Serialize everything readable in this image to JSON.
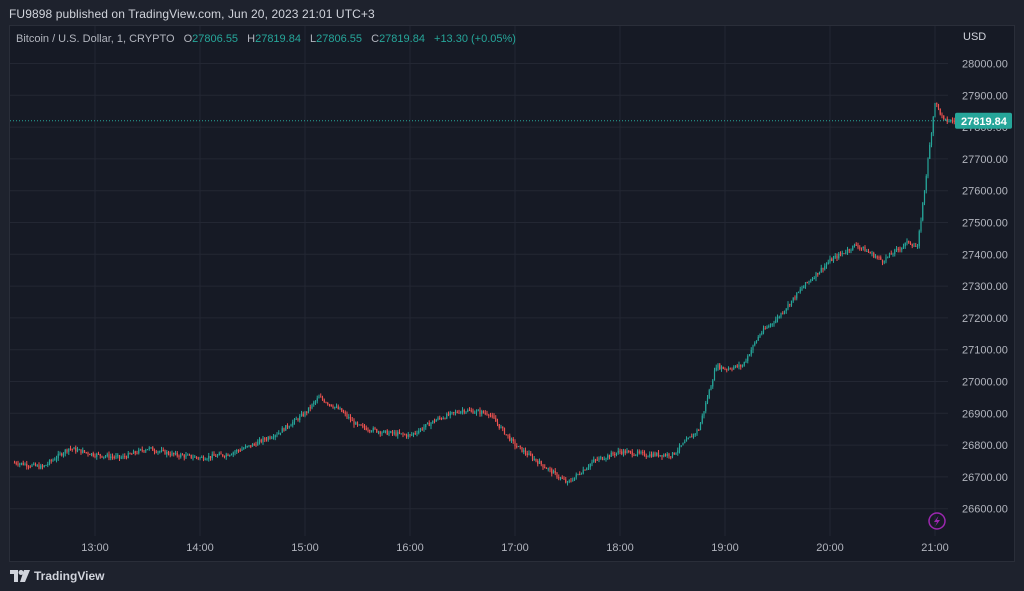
{
  "header": {
    "publish_line": "FU9898 published on TradingView.com, Jun 20, 2023 21:01 UTC+3"
  },
  "legend": {
    "symbol": "Bitcoin / U.S. Dollar, 1, CRYPTO",
    "o_key": "O",
    "o_val": "27806.55",
    "h_key": "H",
    "h_val": "27819.84",
    "l_key": "L",
    "l_val": "27806.55",
    "c_key": "C",
    "c_val": "27819.84",
    "change": "+13.30 (+0.05%)"
  },
  "price_axis": {
    "currency": "USD",
    "last_price": "27819.84",
    "ticks": [
      "28000.00",
      "27900.00",
      "27800.00",
      "27700.00",
      "27600.00",
      "27500.00",
      "27400.00",
      "27300.00",
      "27200.00",
      "27100.00",
      "27000.00",
      "26900.00",
      "26800.00",
      "26700.00",
      "26600.00"
    ]
  },
  "footer": {
    "brand": "TradingView"
  },
  "colors": {
    "up": "#26a69a",
    "down": "#ef5350",
    "background": "#161a25",
    "grid": "#232733",
    "accent_icon": "#9c27b0"
  },
  "icons": {
    "logo": "tradingview-logo-icon",
    "lightning": "lightning-icon"
  },
  "chart_data": {
    "type": "line",
    "title": "Bitcoin / U.S. Dollar, 1, CRYPTO",
    "xlabel": "",
    "ylabel": "USD",
    "x_ticks": [
      "13:00",
      "14:00",
      "15:00",
      "16:00",
      "17:00",
      "18:00",
      "19:00",
      "20:00",
      "21:00"
    ],
    "ylim": [
      26540,
      28080
    ],
    "xlim": [
      "12:14",
      "21:14"
    ],
    "grid": true,
    "last_price": 27819.84,
    "series": [
      {
        "x": [
          "12:15",
          "12:30",
          "12:45",
          "13:00",
          "13:15",
          "13:30",
          "13:45",
          "14:00",
          "14:15",
          "14:30",
          "14:45",
          "15:00",
          "15:08",
          "15:20",
          "15:30",
          "15:45",
          "16:00",
          "16:15",
          "16:30",
          "16:45",
          "17:00",
          "17:10",
          "17:20",
          "17:30",
          "17:45",
          "18:00",
          "18:15",
          "18:30",
          "18:45",
          "18:55",
          "19:00",
          "19:10",
          "19:20",
          "19:30",
          "19:45",
          "20:00",
          "20:15",
          "20:30",
          "20:45",
          "20:50",
          "20:55",
          "21:00",
          "21:05"
        ],
        "values": [
          26745,
          26730,
          26790,
          26770,
          26760,
          26790,
          26770,
          26760,
          26770,
          26800,
          26840,
          26900,
          26950,
          26910,
          26860,
          26840,
          26830,
          26880,
          26910,
          26900,
          26800,
          26760,
          26720,
          26680,
          26750,
          26780,
          26770,
          26770,
          26850,
          27050,
          27040,
          27050,
          27150,
          27200,
          27300,
          27380,
          27430,
          27380,
          27440,
          27420,
          27650,
          27880,
          27820
        ]
      }
    ]
  }
}
